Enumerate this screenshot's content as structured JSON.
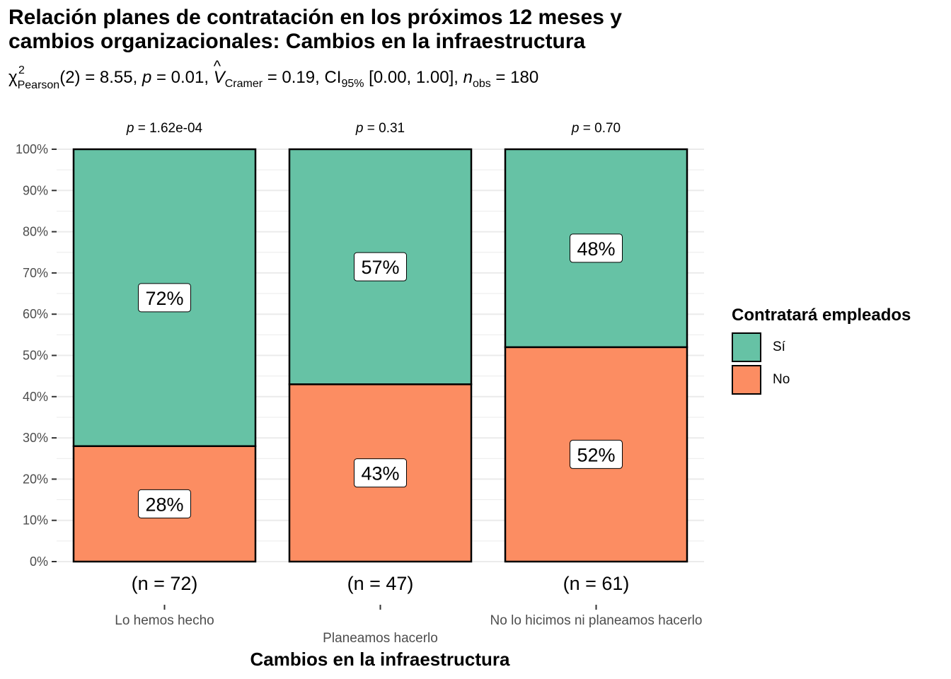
{
  "chart_data": {
    "type": "bar",
    "stacked": true,
    "title_lines": [
      "Relación planes de contratación en los próximos 12 meses y",
      "cambios organizacionales: Cambios en la infraestructura"
    ],
    "subtitle": {
      "chi_symbol": "χ",
      "chi_sup": "2",
      "chi_sub": "Pearson",
      "part1": "(2) = 8.55, ",
      "p": "p",
      "part2": " = 0.01, ",
      "v": "V",
      "v_hat": "^",
      "v_sub": "Cramer",
      "part3": " = 0.19, CI",
      "ci_sub": "95%",
      "part4": " [0.00, 1.00], ",
      "n": "n",
      "n_sub": "obs",
      "part5": " = 180"
    },
    "xlabel": "Cambios en la infraestructura",
    "ylabel": "",
    "ylim": [
      0,
      100
    ],
    "y_ticks": [
      "0%",
      "10%",
      "20%",
      "30%",
      "40%",
      "50%",
      "60%",
      "70%",
      "80%",
      "90%",
      "100%"
    ],
    "categories": [
      "Lo hemos hecho",
      "Planeamos hacerlo",
      "No lo hicimos ni planeamos hacerlo"
    ],
    "counts": [
      "(n = 72)",
      "(n = 47)",
      "(n = 61)"
    ],
    "p_values": [
      "1.62e-04",
      "0.31",
      "0.70"
    ],
    "p_label": "p",
    "series": [
      {
        "name": "No",
        "values": [
          28,
          43,
          52
        ],
        "labels": [
          "28%",
          "43%",
          "52%"
        ],
        "color": "#FC8D62"
      },
      {
        "name": "Sí",
        "values": [
          72,
          57,
          48
        ],
        "labels": [
          "72%",
          "57%",
          "48%"
        ],
        "color": "#66C2A5"
      }
    ],
    "grid": true,
    "legend_title": "Contratará empleados",
    "legend_position": "right",
    "legend_order": [
      "Sí",
      "No"
    ]
  }
}
